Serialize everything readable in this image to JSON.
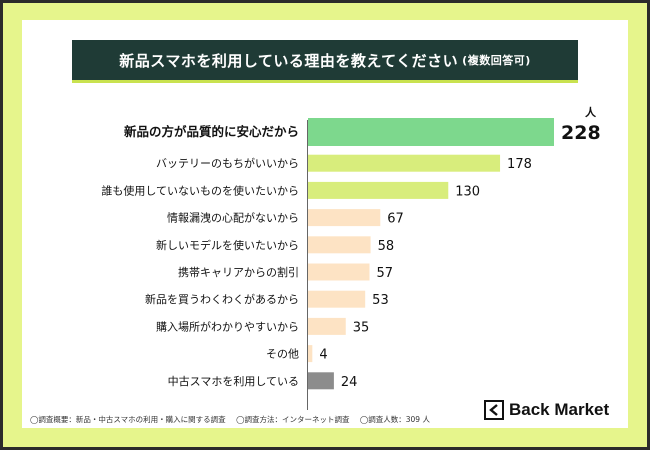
{
  "title": "新品スマホを利用している理由を教えてください",
  "title_sub": "(複数回答可)",
  "unit": "人",
  "footnotes": [
    "◯調査概要：新品・中古スマホの利用・購入に関する調査",
    "◯調査方法：インターネット調査",
    "◯調査人数：309 人"
  ],
  "brand": "Back Market",
  "colors": {
    "background": "#e6f58c",
    "title_bg": "#1f3b36",
    "top_bar": "#7dd88d",
    "green_bar": "#d8ed7c",
    "peach_bar": "#fde3c4",
    "gray_bar": "#8c8c8c"
  },
  "chart_data": {
    "type": "bar",
    "orientation": "horizontal",
    "title": "新品スマホを利用している理由を教えてください(複数回答可)",
    "unit": "人",
    "categories": [
      "新品の方が品質的に安心だから",
      "バッテリーのもちがいいから",
      "誰も使用していないものを使いたいから",
      "情報漏洩の心配がないから",
      "新しいモデルを使いたいから",
      "携帯キャリアからの割引",
      "新品を買うわくわくがあるから",
      "購入場所がわかりやすいから",
      "その他",
      "中古スマホを利用している"
    ],
    "values": [
      228,
      178,
      130,
      67,
      58,
      57,
      53,
      35,
      4,
      24
    ],
    "value_labels": [
      "228",
      "178",
      "130",
      "67",
      "58",
      "57",
      "53",
      "35",
      "4",
      "24"
    ],
    "xlim": [
      0,
      228
    ],
    "bar_colors": [
      "top",
      "green",
      "green",
      "peach",
      "peach",
      "peach",
      "peach",
      "peach",
      "peach",
      "gray"
    ]
  }
}
